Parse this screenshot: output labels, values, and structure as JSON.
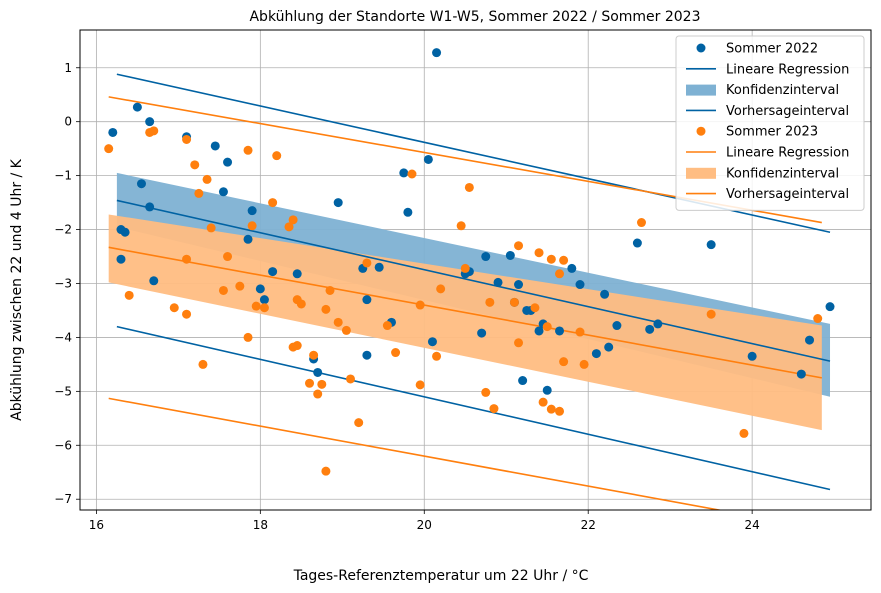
{
  "chart_data": {
    "type": "scatter",
    "title": "Abkühlung der Standorte W1-W5, Sommer 2022 / Sommer 2023",
    "xlabel": "Tages-Referenztemperatur um 22 Uhr / °C",
    "ylabel": "Abkühlung zwischen 22 und 4 Uhr / K",
    "xlim": [
      15.8,
      25.45
    ],
    "ylim": [
      -7.2,
      1.7
    ],
    "xticks": [
      16,
      18,
      20,
      22,
      24
    ],
    "yticks": [
      1,
      0,
      -1,
      -2,
      -3,
      -4,
      -5,
      -6,
      -7
    ],
    "xtick_labels": [
      "16",
      "18",
      "20",
      "22",
      "24"
    ],
    "ytick_labels": [
      "1",
      "0",
      "−1",
      "−2",
      "−3",
      "−4",
      "−5",
      "−6",
      "−7"
    ],
    "grid": true,
    "legend_position": "top-right",
    "legend": [
      {
        "label": "Sommer 2022",
        "kind": "marker",
        "color": "#0062a3"
      },
      {
        "label": "Lineare Regression",
        "kind": "line",
        "color": "#0062a3"
      },
      {
        "label": "Konfidenzinterval",
        "kind": "patch",
        "color": "#7eb1d3"
      },
      {
        "label": "Vorhersageinterval",
        "kind": "line",
        "color": "#0062a3"
      },
      {
        "label": "Sommer 2023",
        "kind": "marker",
        "color": "#ff7f0e"
      },
      {
        "label": "Lineare Regression",
        "kind": "line",
        "color": "#ff7f0e"
      },
      {
        "label": "Konfidenzinterval",
        "kind": "patch",
        "color": "#ffbd82"
      },
      {
        "label": "Vorhersageinterval",
        "kind": "line",
        "color": "#ff7f0e"
      }
    ],
    "series": [
      {
        "name": "Sommer 2022",
        "color": "#0062a3",
        "points": [
          [
            16.2,
            -0.2
          ],
          [
            16.3,
            -2.55
          ],
          [
            16.3,
            -2.0
          ],
          [
            16.35,
            -2.05
          ],
          [
            16.5,
            0.27
          ],
          [
            16.55,
            -1.15
          ],
          [
            16.65,
            0.0
          ],
          [
            16.65,
            -1.58
          ],
          [
            16.7,
            -2.95
          ],
          [
            17.1,
            -0.28
          ],
          [
            17.45,
            -0.45
          ],
          [
            17.55,
            -1.3
          ],
          [
            17.6,
            -0.75
          ],
          [
            17.85,
            -2.18
          ],
          [
            17.9,
            -1.65
          ],
          [
            18.0,
            -3.1
          ],
          [
            18.05,
            -3.3
          ],
          [
            18.15,
            -2.78
          ],
          [
            18.45,
            -2.82
          ],
          [
            18.65,
            -4.4
          ],
          [
            18.7,
            -4.65
          ],
          [
            18.95,
            -1.5
          ],
          [
            19.25,
            -2.72
          ],
          [
            19.3,
            -4.33
          ],
          [
            19.3,
            -3.3
          ],
          [
            19.45,
            -2.7
          ],
          [
            19.6,
            -3.72
          ],
          [
            19.75,
            -0.95
          ],
          [
            19.8,
            -1.68
          ],
          [
            20.05,
            -0.7
          ],
          [
            20.1,
            -4.08
          ],
          [
            20.15,
            1.28
          ],
          [
            20.5,
            -2.82
          ],
          [
            20.55,
            -2.78
          ],
          [
            20.7,
            -3.92
          ],
          [
            20.75,
            -2.5
          ],
          [
            20.9,
            -2.98
          ],
          [
            21.05,
            -2.48
          ],
          [
            21.1,
            -3.35
          ],
          [
            21.15,
            -3.02
          ],
          [
            21.2,
            -4.8
          ],
          [
            21.25,
            -3.5
          ],
          [
            21.3,
            -3.5
          ],
          [
            21.4,
            -3.88
          ],
          [
            21.45,
            -3.75
          ],
          [
            21.5,
            -4.98
          ],
          [
            21.65,
            -3.88
          ],
          [
            21.8,
            -2.72
          ],
          [
            21.9,
            -3.02
          ],
          [
            22.1,
            -4.3
          ],
          [
            22.2,
            -3.2
          ],
          [
            22.25,
            -4.18
          ],
          [
            22.35,
            -3.78
          ],
          [
            22.6,
            -2.25
          ],
          [
            22.75,
            -3.85
          ],
          [
            22.85,
            -3.75
          ],
          [
            23.5,
            -2.28
          ],
          [
            24.0,
            -4.35
          ],
          [
            24.6,
            -4.68
          ],
          [
            24.7,
            -4.05
          ],
          [
            24.95,
            -3.43
          ]
        ],
        "regression": {
          "x": [
            16.25,
            24.95
          ],
          "y": [
            -1.46,
            -4.44
          ]
        },
        "confidence": {
          "x": [
            16.25,
            24.95
          ],
          "upper": [
            -0.95,
            -3.75
          ],
          "lower": [
            -1.95,
            -5.1
          ]
        },
        "prediction": {
          "x": [
            16.25,
            24.95
          ],
          "upper": [
            0.88,
            -2.05
          ],
          "lower": [
            -3.8,
            -6.82
          ]
        }
      },
      {
        "name": "Sommer 2023",
        "color": "#ff7f0e",
        "points": [
          [
            16.15,
            -0.5
          ],
          [
            16.4,
            -3.22
          ],
          [
            16.65,
            -0.2
          ],
          [
            16.7,
            -0.17
          ],
          [
            16.95,
            -3.45
          ],
          [
            17.1,
            -0.33
          ],
          [
            17.1,
            -2.55
          ],
          [
            17.1,
            -3.57
          ],
          [
            17.2,
            -0.8
          ],
          [
            17.25,
            -1.33
          ],
          [
            17.3,
            -4.5
          ],
          [
            17.35,
            -1.07
          ],
          [
            17.4,
            -1.97
          ],
          [
            17.55,
            -3.13
          ],
          [
            17.6,
            -2.5
          ],
          [
            17.75,
            -3.05
          ],
          [
            17.85,
            -0.53
          ],
          [
            17.9,
            -1.93
          ],
          [
            17.85,
            -4.0
          ],
          [
            17.95,
            -3.42
          ],
          [
            18.05,
            -3.45
          ],
          [
            18.15,
            -1.5
          ],
          [
            18.2,
            -0.63
          ],
          [
            18.35,
            -1.95
          ],
          [
            18.4,
            -1.82
          ],
          [
            18.4,
            -4.18
          ],
          [
            18.45,
            -3.3
          ],
          [
            18.45,
            -4.15
          ],
          [
            18.5,
            -3.38
          ],
          [
            18.6,
            -4.85
          ],
          [
            18.65,
            -4.33
          ],
          [
            18.7,
            -5.05
          ],
          [
            18.75,
            -4.87
          ],
          [
            18.8,
            -6.48
          ],
          [
            18.8,
            -3.48
          ],
          [
            18.85,
            -3.13
          ],
          [
            18.95,
            -3.72
          ],
          [
            19.05,
            -3.87
          ],
          [
            19.1,
            -4.77
          ],
          [
            19.2,
            -5.58
          ],
          [
            19.3,
            -2.62
          ],
          [
            19.55,
            -3.78
          ],
          [
            19.65,
            -4.28
          ],
          [
            19.85,
            -0.97
          ],
          [
            19.95,
            -4.88
          ],
          [
            19.95,
            -3.4
          ],
          [
            20.15,
            -4.35
          ],
          [
            20.2,
            -3.1
          ],
          [
            20.45,
            -1.93
          ],
          [
            20.5,
            -2.72
          ],
          [
            20.55,
            -1.22
          ],
          [
            20.75,
            -5.02
          ],
          [
            20.8,
            -3.35
          ],
          [
            20.85,
            -5.32
          ],
          [
            21.1,
            -3.35
          ],
          [
            21.15,
            -2.3
          ],
          [
            21.15,
            -4.1
          ],
          [
            21.35,
            -3.45
          ],
          [
            21.4,
            -2.43
          ],
          [
            21.45,
            -5.2
          ],
          [
            21.5,
            -3.8
          ],
          [
            21.55,
            -2.55
          ],
          [
            21.55,
            -5.33
          ],
          [
            21.65,
            -2.82
          ],
          [
            21.65,
            -5.37
          ],
          [
            21.7,
            -4.45
          ],
          [
            21.7,
            -2.57
          ],
          [
            21.9,
            -3.9
          ],
          [
            21.95,
            -4.5
          ],
          [
            22.65,
            -1.87
          ],
          [
            23.5,
            -3.57
          ],
          [
            23.9,
            -5.78
          ],
          [
            24.8,
            -3.65
          ]
        ],
        "regression": {
          "x": [
            16.15,
            24.85
          ],
          "y": [
            -2.33,
            -4.75
          ]
        },
        "confidence": {
          "x": [
            16.15,
            24.85
          ],
          "upper": [
            -1.72,
            -3.78
          ],
          "lower": [
            -2.98,
            -5.72
          ]
        },
        "prediction": {
          "x": [
            16.15,
            24.85
          ],
          "upper": [
            0.46,
            -1.87
          ],
          "lower": [
            -5.13,
            -7.55
          ]
        }
      }
    ]
  }
}
